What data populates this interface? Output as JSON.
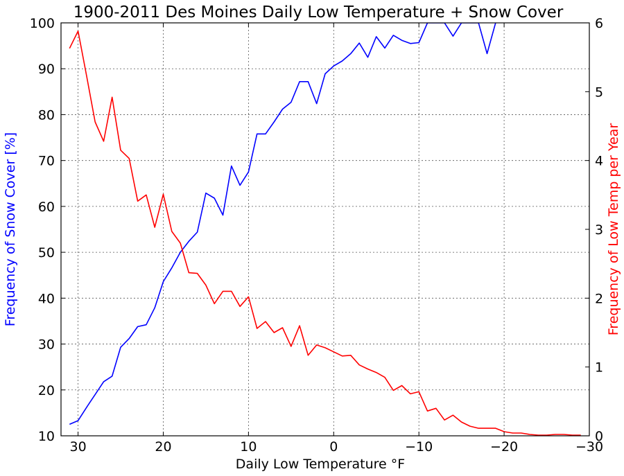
{
  "chart_data": {
    "type": "line",
    "title": "1900-2011 Des Moines Daily Low Temperature + Snow Cover",
    "xlabel": "Daily Low Temperature °F",
    "ylabel_left": "Frequency of Snow Cover [%]",
    "ylabel_right": "Frequency of Low Temp per Year",
    "xlim": [
      32,
      -30
    ],
    "ylim_left": [
      10,
      100
    ],
    "ylim_right": [
      0,
      6
    ],
    "x_ticks": [
      30,
      20,
      10,
      0,
      -10,
      -20,
      -30
    ],
    "x_tick_labels": [
      "30",
      "20",
      "10",
      "0",
      "−10",
      "−20",
      "−30"
    ],
    "y_left_ticks": [
      10,
      20,
      30,
      40,
      50,
      60,
      70,
      80,
      90,
      100
    ],
    "y_left_tick_labels": [
      "10",
      "20",
      "30",
      "40",
      "50",
      "60",
      "70",
      "80",
      "90",
      "100"
    ],
    "y_right_ticks": [
      0,
      1,
      2,
      3,
      4,
      5,
      6
    ],
    "y_right_tick_labels": [
      "0",
      "1",
      "2",
      "3",
      "4",
      "5",
      "6"
    ],
    "grid": true,
    "series": [
      {
        "axis": "left",
        "color": "#0000ff",
        "x": [
          31,
          30,
          29,
          28,
          27,
          26,
          25,
          24,
          23,
          22,
          21,
          20,
          19,
          18,
          17,
          16,
          15,
          14,
          13,
          12,
          11,
          10,
          9,
          8,
          7,
          6,
          5,
          4,
          3,
          2,
          1,
          0,
          -1,
          -2,
          -3,
          -4,
          -5,
          -6,
          -7,
          -8,
          -9,
          -10,
          -11,
          -12,
          -13,
          -14,
          -15,
          -16,
          -17,
          -18,
          -19
        ],
        "values": [
          12.5,
          13.3,
          16.2,
          19.0,
          21.8,
          23.0,
          29.3,
          31.2,
          33.8,
          34.2,
          37.9,
          43.6,
          46.6,
          50.0,
          52.4,
          54.4,
          62.9,
          61.8,
          58.1,
          68.8,
          64.6,
          67.5,
          75.8,
          75.8,
          78.4,
          81.2,
          82.7,
          87.2,
          87.2,
          82.4,
          88.9,
          90.6,
          91.7,
          93.3,
          95.6,
          92.5,
          97.0,
          94.5,
          97.3,
          96.2,
          95.5,
          95.7,
          100,
          100,
          100,
          97.1,
          100,
          100,
          100,
          93.3,
          100
        ]
      },
      {
        "axis": "right",
        "color": "#ff0000",
        "x": [
          31,
          30,
          29,
          28,
          27,
          26,
          25,
          24,
          23,
          22,
          21,
          20,
          19,
          18,
          17,
          16,
          15,
          14,
          13,
          12,
          11,
          10,
          9,
          8,
          7,
          6,
          5,
          4,
          3,
          2,
          1,
          0,
          -1,
          -2,
          -3,
          -4,
          -5,
          -6,
          -7,
          -8,
          -9,
          -10,
          -11,
          -12,
          -13,
          -14,
          -15,
          -16,
          -17,
          -18,
          -19,
          -20,
          -21,
          -22,
          -23,
          -24,
          -25,
          -26,
          -27,
          -28,
          -29
        ],
        "values": [
          5.63,
          5.88,
          5.23,
          4.56,
          4.28,
          4.92,
          4.15,
          4.03,
          3.41,
          3.5,
          3.03,
          3.51,
          2.97,
          2.8,
          2.37,
          2.36,
          2.19,
          1.92,
          2.1,
          2.1,
          1.88,
          2.02,
          1.56,
          1.66,
          1.5,
          1.57,
          1.3,
          1.6,
          1.17,
          1.32,
          1.28,
          1.22,
          1.16,
          1.17,
          1.03,
          0.97,
          0.92,
          0.85,
          0.66,
          0.73,
          0.61,
          0.64,
          0.36,
          0.4,
          0.23,
          0.3,
          0.2,
          0.14,
          0.11,
          0.11,
          0.11,
          0.06,
          0.04,
          0.04,
          0.02,
          0.01,
          0.01,
          0.02,
          0.02,
          0.01,
          0.01
        ]
      }
    ]
  }
}
